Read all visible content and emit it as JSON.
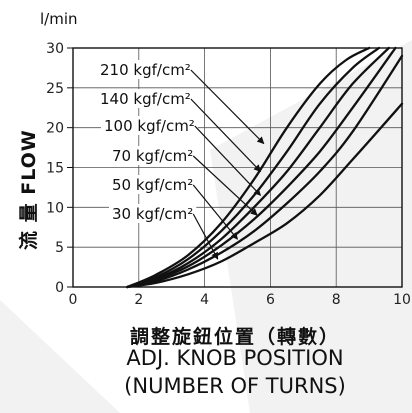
{
  "chart_data": {
    "type": "line",
    "unit_label": "l/min",
    "ylabel": "流 量 FLOW",
    "xlabel_lines": [
      "調整旋鈕位置（轉數）",
      "ADJ. KNOB POSITION",
      "(NUMBER OF TURNS)"
    ],
    "xlim": [
      0,
      10
    ],
    "ylim": [
      0,
      30
    ],
    "x_ticks": [
      0,
      2,
      4,
      6,
      8,
      10
    ],
    "y_ticks": [
      0,
      5,
      10,
      15,
      20,
      25,
      30
    ],
    "grid": true,
    "series": [
      {
        "name": "210 kgf/cm²",
        "x": [
          1.65,
          2.5,
          3.5,
          4.5,
          5.5,
          6.5,
          7.5,
          8.3,
          9.0
        ],
        "y": [
          0,
          1.5,
          4.0,
          8.0,
          13.5,
          20.0,
          25.5,
          28.5,
          30.0
        ]
      },
      {
        "name": "140 kgf/cm²",
        "x": [
          1.65,
          2.5,
          3.5,
          4.5,
          5.5,
          6.5,
          7.5,
          8.5,
          9.3
        ],
        "y": [
          0,
          1.2,
          3.5,
          7.0,
          11.5,
          17.0,
          23.0,
          27.5,
          30.0
        ]
      },
      {
        "name": "100 kgf/cm²",
        "x": [
          1.65,
          2.5,
          3.5,
          4.5,
          5.5,
          6.5,
          7.5,
          8.5,
          9.6
        ],
        "y": [
          0,
          1.0,
          3.0,
          6.0,
          10.0,
          14.5,
          20.0,
          25.5,
          30.0
        ]
      },
      {
        "name": "70 kgf/cm²",
        "x": [
          1.65,
          2.5,
          3.5,
          4.5,
          5.5,
          6.5,
          7.5,
          8.5,
          9.8
        ],
        "y": [
          0,
          0.9,
          2.6,
          5.2,
          8.5,
          12.5,
          17.0,
          22.5,
          30.0
        ]
      },
      {
        "name": "50 kgf/cm²",
        "x": [
          1.65,
          2.5,
          3.5,
          4.5,
          5.5,
          6.5,
          7.5,
          8.5,
          10.0
        ],
        "y": [
          0,
          0.7,
          2.2,
          4.3,
          7.0,
          10.5,
          14.5,
          19.5,
          29.0
        ]
      },
      {
        "name": "30 kgf/cm²",
        "x": [
          1.65,
          2.5,
          3.5,
          4.5,
          5.5,
          6.5,
          7.5,
          8.5,
          10.0
        ],
        "y": [
          0,
          0.5,
          1.6,
          3.2,
          5.5,
          8.0,
          11.5,
          16.0,
          23.0
        ]
      }
    ],
    "annotations": [
      {
        "text": "210 kgf/cm²",
        "target": {
          "x": 5.8,
          "y": 18.0
        }
      },
      {
        "text": "140 kgf/cm²",
        "target": {
          "x": 5.7,
          "y": 14.5
        }
      },
      {
        "text": "100 kgf/cm²",
        "target": {
          "x": 5.7,
          "y": 11.5
        }
      },
      {
        "text": "70 kgf/cm²",
        "target": {
          "x": 5.6,
          "y": 9.0
        }
      },
      {
        "text": "50 kgf/cm²",
        "target": {
          "x": 5.0,
          "y": 6.0
        }
      },
      {
        "text": "30 kgf/cm²",
        "target": {
          "x": 4.4,
          "y": 3.5
        }
      }
    ]
  }
}
